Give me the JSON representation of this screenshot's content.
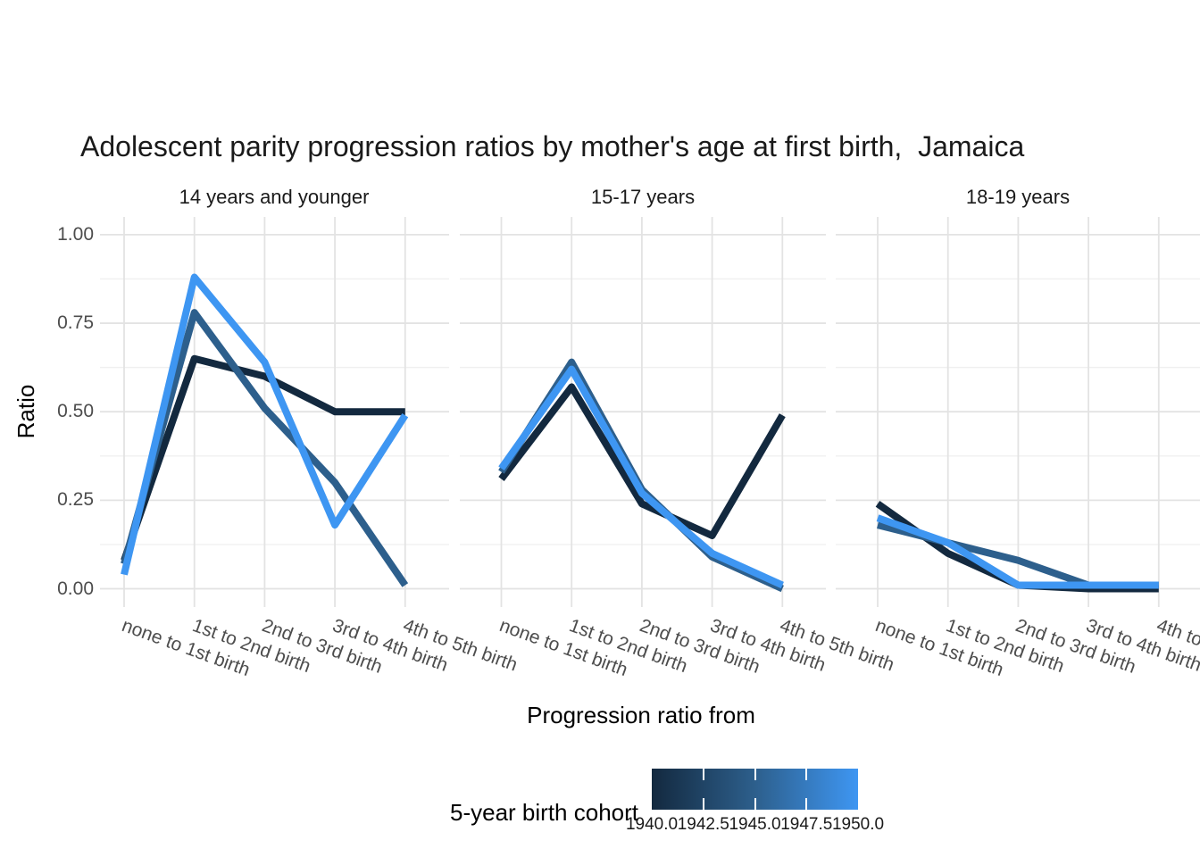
{
  "chart_data": {
    "type": "line",
    "title": "Adolescent parity progression ratios by mother's age at first birth,  Jamaica",
    "x_axis_title": "Progression ratio from",
    "y_axis_title": "Ratio",
    "categories": [
      "none to 1st birth",
      "1st to 2nd birth",
      "2nd to 3rd birth",
      "3rd to 4th birth",
      "4th to 5th birth"
    ],
    "y_tick_labels": [
      "1.00",
      "0.75",
      "0.50",
      "0.25",
      "0.00"
    ],
    "ylim": [
      0,
      1
    ],
    "grid": true,
    "legend": {
      "title": "5-year birth cohort",
      "position": "bottom",
      "tick_labels": [
        "1940.0",
        "1942.5",
        "1945.0",
        "1947.5",
        "1950.0"
      ],
      "gradient_low": "#13293F",
      "gradient_mid": "#2D5F8C",
      "gradient_high": "#3E96F2"
    },
    "cohorts": [
      {
        "name": "1940",
        "color": "#13293F"
      },
      {
        "name": "1945",
        "color": "#2D5F8C"
      },
      {
        "name": "1950",
        "color": "#3E96F2"
      }
    ],
    "facets": [
      {
        "label": "14 years and younger",
        "series": [
          {
            "cohort": 1940,
            "values": [
              0.08,
              0.65,
              0.6,
              0.5,
              0.5
            ]
          },
          {
            "cohort": 1945,
            "values": [
              0.07,
              0.78,
              0.51,
              0.3,
              0.01
            ]
          },
          {
            "cohort": 1950,
            "values": [
              0.04,
              0.88,
              0.64,
              0.18,
              0.49
            ]
          }
        ]
      },
      {
        "label": "15-17 years",
        "series": [
          {
            "cohort": 1940,
            "values": [
              0.31,
              0.57,
              0.24,
              0.15,
              0.49
            ]
          },
          {
            "cohort": 1945,
            "values": [
              0.33,
              0.64,
              0.28,
              0.09,
              0.0
            ]
          },
          {
            "cohort": 1950,
            "values": [
              0.34,
              0.62,
              0.27,
              0.1,
              0.01
            ]
          }
        ]
      },
      {
        "label": "18-19 years",
        "series": [
          {
            "cohort": 1940,
            "values": [
              0.24,
              0.1,
              0.01,
              0.0,
              0.0
            ]
          },
          {
            "cohort": 1945,
            "values": [
              0.18,
              0.13,
              0.08,
              0.01,
              0.01
            ]
          },
          {
            "cohort": 1950,
            "values": [
              0.2,
              0.13,
              0.01,
              0.01,
              0.01
            ]
          }
        ]
      }
    ]
  }
}
